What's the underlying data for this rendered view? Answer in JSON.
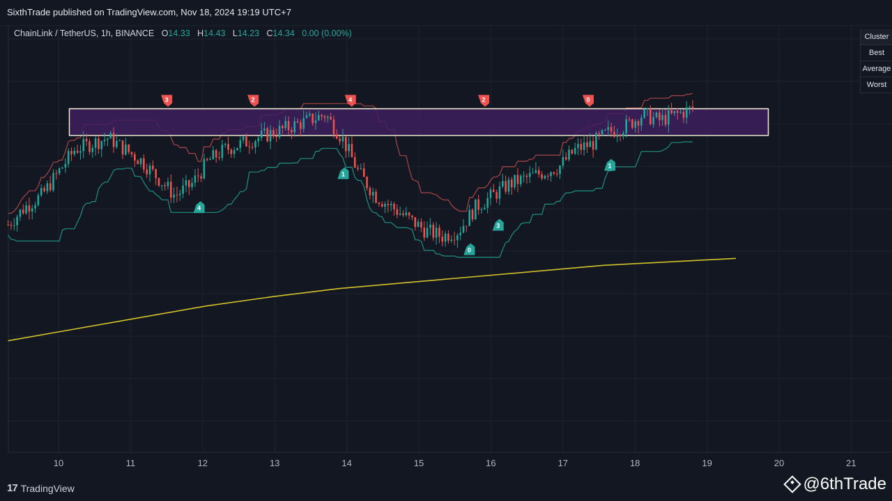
{
  "header": {
    "published": "SixthTrade published on TradingView.com, Nov 18, 2024 19:19 UTC+7"
  },
  "legend": {
    "symbol": "ChainLink / TetherUS, 1h, BINANCE",
    "o_label": "O",
    "o_value": "14.33",
    "h_label": "H",
    "h_value": "14.43",
    "l_label": "L",
    "l_value": "14.23",
    "c_label": "C",
    "c_value": "14.34",
    "change": "0.00 (0.00%)"
  },
  "cluster_table": [
    "Cluster",
    "Best",
    "Average",
    "Worst"
  ],
  "footer": {
    "logo": "TradingView",
    "handle": "@6thTrade"
  },
  "colors": {
    "background": "#131722",
    "up": "#26a69a",
    "down": "#ef5350",
    "ma": "#d4c42a",
    "zone_fill": "#3d1f5c",
    "zone_border": "#f3eed2",
    "trail_up": "#1f9e8f",
    "trail_down": "#e05555"
  },
  "chart_data": {
    "type": "candlestick",
    "x_ticks": [
      "10",
      "11",
      "12",
      "13",
      "14",
      "15",
      "16",
      "17",
      "18",
      "19",
      "20",
      "21"
    ],
    "x_range": [
      9.3,
      21.3
    ],
    "price_close_estimate": [
      13.35,
      13.5,
      13.6,
      13.8,
      14.0,
      14.05,
      14.1,
      14.0,
      13.9,
      13.75,
      13.6,
      13.7,
      13.9,
      14.0,
      14.05,
      14.1,
      14.15,
      14.2,
      14.25,
      14.3,
      14.1,
      13.8,
      13.6,
      13.5,
      13.4,
      13.3,
      13.25,
      13.3,
      13.5,
      13.6,
      13.7,
      13.75,
      13.8,
      13.85,
      14.0,
      14.05,
      14.15,
      14.2,
      14.3,
      14.25,
      14.3,
      14.35
    ],
    "moving_average": [
      12.35,
      12.45,
      12.55,
      12.65,
      12.73,
      12.8,
      12.85,
      12.9,
      12.95,
      13.0,
      13.03,
      13.06
    ],
    "resistance_zone": {
      "x_start": 10.15,
      "x_end": 19.85,
      "low": 14.12,
      "high": 14.35
    },
    "signals": [
      {
        "x": 11.5,
        "type": "sell",
        "label": "3"
      },
      {
        "x": 12.7,
        "type": "sell",
        "label": "2"
      },
      {
        "x": 14.05,
        "type": "sell",
        "label": "4"
      },
      {
        "x": 15.9,
        "type": "sell",
        "label": "2"
      },
      {
        "x": 17.35,
        "type": "sell",
        "label": "0"
      },
      {
        "x": 11.95,
        "type": "buy",
        "label": "4"
      },
      {
        "x": 13.95,
        "type": "buy",
        "label": "1"
      },
      {
        "x": 15.7,
        "type": "buy",
        "label": "0"
      },
      {
        "x": 16.1,
        "type": "buy",
        "label": "3"
      },
      {
        "x": 17.65,
        "type": "buy",
        "label": "1"
      }
    ],
    "last_x": 18.8
  }
}
